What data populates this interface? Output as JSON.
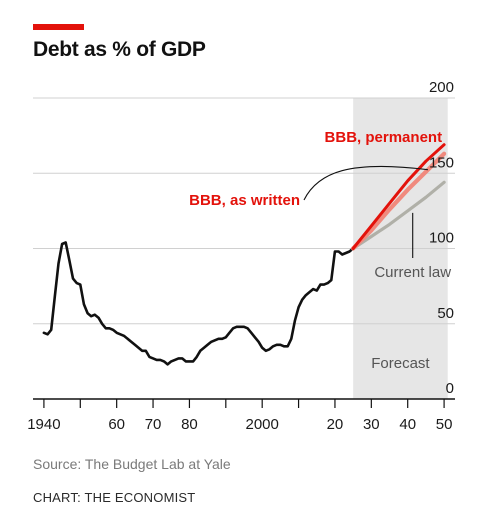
{
  "header": {
    "title": "Debt as % of GDP"
  },
  "footer": {
    "source": "Source: The Budget Lab at Yale",
    "credit": "CHART: THE ECONOMIST"
  },
  "colors": {
    "accent": "#e3120b",
    "historical": "#111111",
    "bbb_permanent": "#e3120b",
    "bbb_as_written": "#f08a7e",
    "current_law": "#b0b0a8",
    "forecast_band": "#e6e6e6",
    "grid": "#d0d0d0"
  },
  "chart_data": {
    "type": "line",
    "title": "Debt as % of GDP",
    "xlabel": "",
    "ylabel": "",
    "xlim": [
      1937,
      2053
    ],
    "ylim": [
      0,
      200
    ],
    "grid": true,
    "y_axis_position": "right",
    "x_ticks": [
      1940,
      1960,
      1970,
      1980,
      2000,
      2020,
      2030,
      2040,
      2050
    ],
    "x_minor_ticks": [
      1950,
      1990,
      2010
    ],
    "x_tick_labels": [
      "1940",
      "60",
      "70",
      "80",
      "2000",
      "20",
      "30",
      "40",
      "50"
    ],
    "y_ticks": [
      0,
      50,
      100,
      150,
      200
    ],
    "y_tick_labels": [
      "0",
      "50",
      "100",
      "150",
      "200"
    ],
    "forecast_region": {
      "start": 2025,
      "end": 2051,
      "label": "Forecast"
    },
    "series": [
      {
        "key": "historical",
        "x": [
          1940,
          1941,
          1942,
          1943,
          1944,
          1945,
          1946,
          1947,
          1948,
          1949,
          1950,
          1951,
          1952,
          1953,
          1954,
          1955,
          1956,
          1957,
          1958,
          1959,
          1960,
          1961,
          1962,
          1963,
          1964,
          1965,
          1966,
          1967,
          1968,
          1969,
          1970,
          1971,
          1972,
          1973,
          1974,
          1975,
          1976,
          1977,
          1978,
          1979,
          1980,
          1981,
          1982,
          1983,
          1984,
          1985,
          1986,
          1987,
          1988,
          1989,
          1990,
          1991,
          1992,
          1993,
          1994,
          1995,
          1996,
          1997,
          1998,
          1999,
          2000,
          2001,
          2002,
          2003,
          2004,
          2005,
          2006,
          2007,
          2008,
          2009,
          2010,
          2011,
          2012,
          2013,
          2014,
          2015,
          2016,
          2017,
          2018,
          2019,
          2020,
          2021,
          2022,
          2023,
          2024,
          2025
        ],
        "values": [
          44,
          43,
          46,
          68,
          90,
          103,
          104,
          92,
          80,
          77,
          76,
          63,
          57,
          55,
          56,
          54,
          50,
          47,
          47,
          46,
          44,
          43,
          42,
          40,
          38,
          36,
          34,
          32,
          32,
          28,
          27,
          26,
          26,
          25,
          23,
          25,
          26,
          27,
          27,
          25,
          25,
          25,
          28,
          32,
          34,
          36,
          38,
          39,
          40,
          40,
          41,
          44,
          47,
          48,
          48,
          48,
          47,
          44,
          41,
          38,
          34,
          32,
          33,
          35,
          36,
          36,
          35,
          35,
          40,
          52,
          61,
          66,
          69,
          71,
          73,
          72,
          76,
          76,
          77,
          79,
          98,
          98,
          96,
          97,
          98,
          100
        ]
      },
      {
        "key": "bbb_as_written",
        "label": "BBB, as written",
        "x": [
          2025,
          2030,
          2035,
          2040,
          2045,
          2050
        ],
        "values": [
          100,
          112,
          126,
          139,
          151,
          163
        ]
      },
      {
        "key": "bbb_permanent",
        "label": "BBB, permanent",
        "x": [
          2025,
          2030,
          2035,
          2040,
          2045,
          2050
        ],
        "values": [
          100,
          115,
          130,
          145,
          158,
          169
        ]
      },
      {
        "key": "current_law",
        "label": "Current law",
        "x": [
          2025,
          2030,
          2035,
          2040,
          2045,
          2050
        ],
        "values": [
          100,
          108,
          116,
          125,
          134,
          144
        ]
      }
    ],
    "annotations": [
      {
        "text": "BBB, permanent",
        "series": "bbb_permanent"
      },
      {
        "text": "BBB, as written",
        "series": "bbb_as_written"
      },
      {
        "text": "Current law",
        "series": "current_law"
      },
      {
        "text": "Forecast",
        "series": ""
      }
    ]
  }
}
